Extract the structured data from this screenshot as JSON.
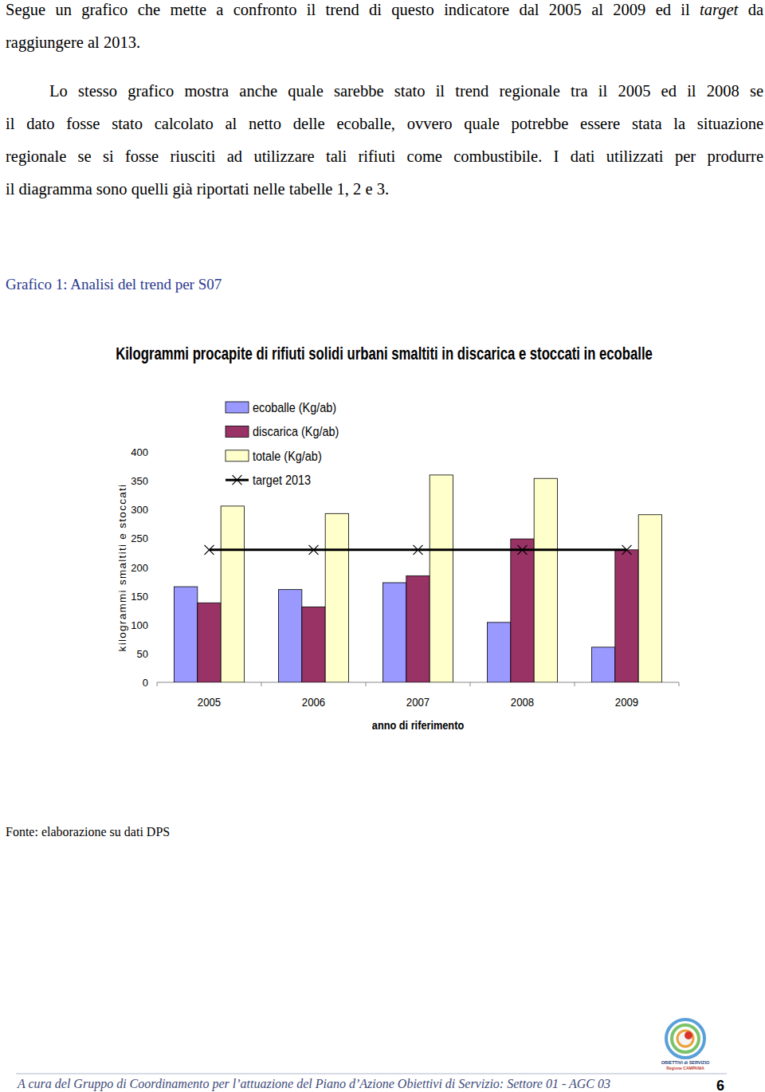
{
  "document": {
    "paragraphs": [
      {
        "lines": [
          {
            "text": "Segue un grafico che mette a confronto il trend di questo indicatore dal 2005 al 2009 ed il target da",
            "emphasis": "target"
          },
          {
            "text": "raggiungere al 2013."
          }
        ]
      },
      {
        "lines": [
          {
            "text": "Lo stesso grafico mostra anche quale sarebbe stato il trend regionale tra il 2005 ed il 2008 se"
          },
          {
            "text": "il dato fosse stato calcolato al netto delle ecoballe, ovvero quale potrebbe essere stata la situazione"
          },
          {
            "text": "regionale se si fosse riusciti ad utilizzare tali rifiuti come combustibile. I dati utilizzati per produrre"
          },
          {
            "text": "il diagramma sono quelli già riportati nelle tabelle 1, 2 e 3."
          }
        ]
      }
    ],
    "caption": "Grafico 1: Analisi del trend per S07",
    "source": "Fonte: elaborazione su dati DPS",
    "footer": "A cura del Gruppo di Coordinamento per l’attuazione del Piano d’Azione Obiettivi di Servizio: Settore 01 - AGC 03",
    "page_number": "6",
    "logo": [
      "OBIETTIVI di SERVIZIO",
      "Regione CAMPANIA"
    ]
  },
  "chart_data": {
    "type": "bar",
    "title": "Kilogrammi procapite di rifiuti solidi urbani smaltiti in discarica e stoccati in ecoballe",
    "x_label": "anno di riferimento",
    "y_label": "kilogrammi smaltiti e stoccati",
    "categories": [
      "2005",
      "2006",
      "2007",
      "2008",
      "2009"
    ],
    "series": [
      {
        "name": "ecoballe (Kg/ab)",
        "type": "bar",
        "color": "#9999ff",
        "values": [
          166,
          161,
          173,
          104,
          61
        ]
      },
      {
        "name": "discarica (Kg/ab)",
        "type": "bar",
        "color": "#993366",
        "values": [
          138,
          131,
          185,
          249,
          230
        ]
      },
      {
        "name": "totale (Kg/ab)",
        "type": "bar",
        "color": "#ffffcc",
        "values": [
          306,
          293,
          360,
          354,
          291
        ]
      },
      {
        "name": "target 2013",
        "type": "line",
        "color": "#000000",
        "marker": "x",
        "line_style": "solid",
        "values": [
          230,
          230,
          230,
          230,
          230
        ]
      }
    ],
    "ylim": [
      0,
      400
    ],
    "yticks": [
      0,
      50,
      100,
      150,
      200,
      250,
      300,
      350,
      400
    ],
    "grid": false,
    "legend": "top-left"
  }
}
